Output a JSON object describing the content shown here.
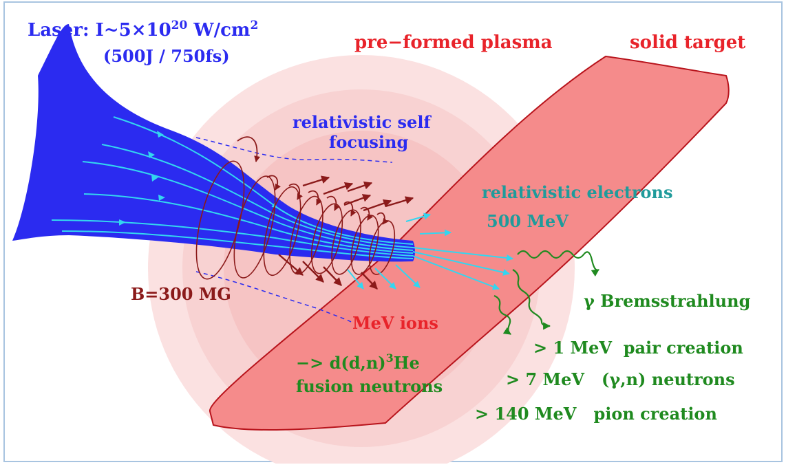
{
  "labels": {
    "laser_prefix": "Laser: I~5×10",
    "laser_exponent": "20",
    "laser_unit": " W/cm",
    "laser_unit_exponent": "2",
    "laser_energy": "(500J / 750fs)",
    "preformed_plasma": "pre−formed plasma",
    "solid_target": "solid target",
    "self_focusing_line1": "relativistic self",
    "self_focusing_line2": "focusing",
    "electrons_line1": "relativistic electrons",
    "electrons_line2": "500 MeV",
    "b_field": "B=300 MG",
    "bremsstrahlung": "γ Bremsstrahlung",
    "mev_ions": "MeV ions",
    "fusion_prefix": "−> d(d,n)",
    "fusion_superscript": "3",
    "fusion_suffix": "He",
    "fusion_line2": "fusion neutrons",
    "pair_creation": "> 1 MeV  pair creation",
    "gamma_neutrons": "> 7 MeV   (γ,n) neutrons",
    "pion_creation": "> 140 MeV   pion creation"
  },
  "colors": {
    "laser_blue": "#2b2bf0",
    "cyan_lines": "#33d6f0",
    "plasma_red": "#e8232a",
    "target_fill": "#f58b8b",
    "target_stroke": "#b8141c",
    "dark_red": "#8b1a1a",
    "teal": "#1f9b9b",
    "green": "#1f8a1f",
    "halo": "#f7c6c6"
  }
}
